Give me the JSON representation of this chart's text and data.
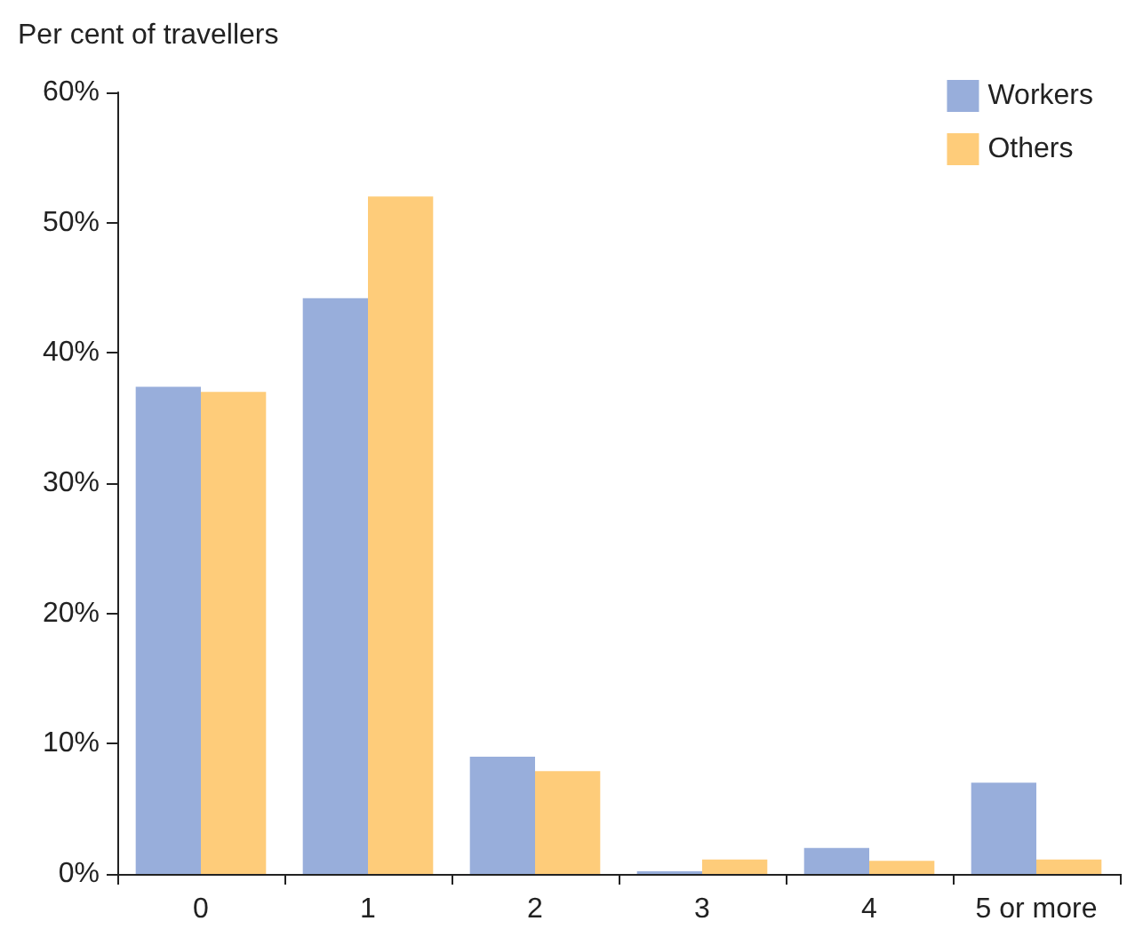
{
  "chart_data": {
    "type": "bar",
    "ylabel": "Per cent of travellers",
    "categories": [
      "0",
      "1",
      "2",
      "3",
      "4",
      "5 or more"
    ],
    "series": [
      {
        "name": "Workers",
        "color": "#98aedb",
        "values": [
          37.4,
          44.2,
          9.0,
          0.2,
          2.0,
          7.0
        ]
      },
      {
        "name": "Others",
        "color": "#fecc7a",
        "values": [
          37.0,
          52.0,
          7.9,
          1.1,
          1.0,
          1.1
        ]
      }
    ],
    "ylim": [
      0,
      60
    ],
    "yticks": [
      {
        "value": 0,
        "label": "0%"
      },
      {
        "value": 10,
        "label": "10%"
      },
      {
        "value": 20,
        "label": "20%"
      },
      {
        "value": 30,
        "label": "30%"
      },
      {
        "value": 40,
        "label": "40%"
      },
      {
        "value": 50,
        "label": "50%"
      },
      {
        "value": 60,
        "label": "60%"
      }
    ],
    "grid": false,
    "legend": "top right"
  }
}
